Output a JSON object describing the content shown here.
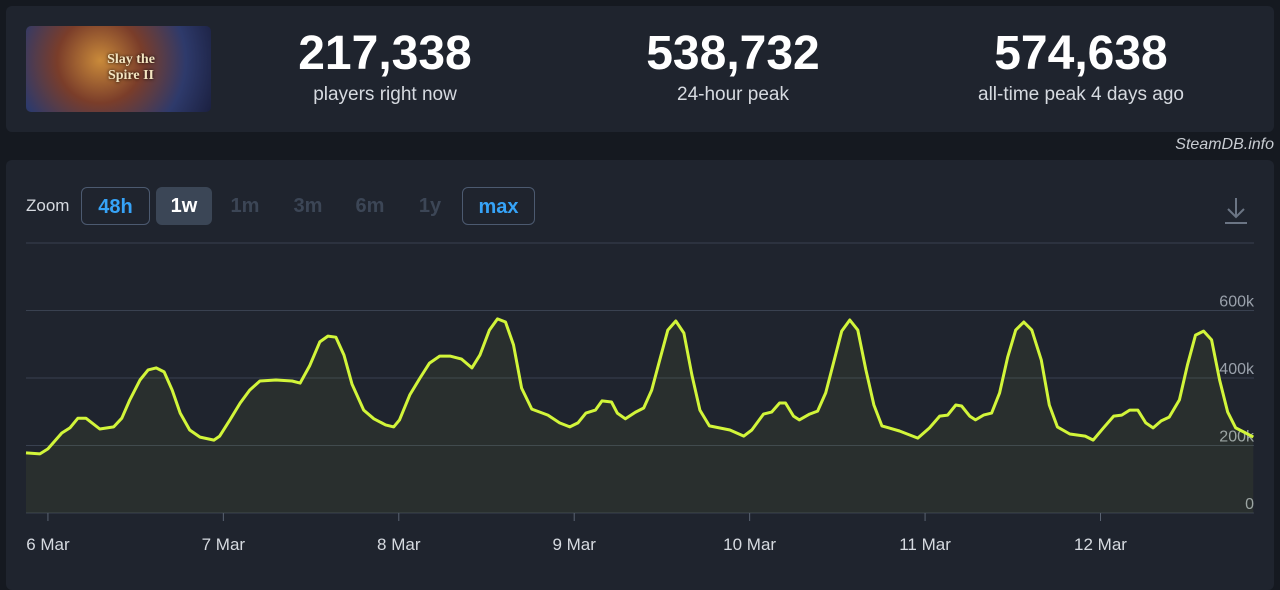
{
  "game": {
    "logo": "Slay the Spire II"
  },
  "stats": [
    {
      "value": "217,338",
      "label": "players right now"
    },
    {
      "value": "538,732",
      "label": "24-hour peak"
    },
    {
      "value": "574,638",
      "label": "all-time peak 4 days ago"
    }
  ],
  "source": "SteamDB.info",
  "zoom": {
    "label": "Zoom",
    "options": [
      "48h",
      "1w",
      "1m",
      "3m",
      "6m",
      "1y",
      "max"
    ]
  },
  "chart_data": {
    "type": "line",
    "color": "#d2f53a",
    "grid": true,
    "x": [
      -3.0,
      -1.1,
      0,
      1.9,
      3.0,
      4.1,
      5.2,
      7.1,
      9.0,
      10.1,
      11.2,
      12.6,
      13.7,
      14.8,
      15.9,
      17.0,
      18.1,
      19.4,
      20.8,
      22.7,
      23.5,
      24.9,
      26.3,
      27.6,
      29.0,
      31.2,
      33.4,
      34.5,
      35.8,
      37.2,
      38.3,
      39.4,
      40.5,
      41.6,
      43.2,
      44.6,
      46.2,
      47.3,
      48.1,
      49.5,
      50.9,
      52.2,
      53.6,
      55.0,
      56.6,
      58.0,
      59.1,
      60.4,
      61.5,
      62.6,
      63.7,
      64.8,
      66.2,
      68.4,
      70.0,
      71.4,
      72.5,
      73.6,
      74.9,
      75.8,
      77.1,
      77.9,
      79.0,
      80.4,
      81.5,
      82.6,
      83.7,
      84.8,
      85.9,
      87.0,
      88.1,
      89.2,
      90.5,
      93.3,
      95.2,
      96.3,
      97.9,
      99.0,
      100.1,
      100.9,
      102.0,
      102.8,
      104.2,
      105.3,
      106.4,
      107.5,
      108.6,
      109.7,
      110.8,
      111.9,
      113.0,
      114.1,
      116.5,
      119.0,
      120.6,
      122.0,
      123.1,
      124.2,
      125.0,
      126.1,
      126.9,
      128.0,
      129.1,
      130.2,
      131.3,
      132.4,
      133.5,
      134.6,
      135.9,
      137.0,
      138.1,
      139.8,
      141.9,
      143.0,
      144.4,
      145.8,
      146.9,
      148.0,
      149.1,
      150.2,
      151.2,
      152.3,
      153.4,
      154.8,
      155.9,
      157.0,
      158.1,
      159.2,
      160.3,
      161.4,
      162.5,
      163.6,
      164.9
    ],
    "values": [
      178000,
      175000,
      190000,
      237000,
      252000,
      281000,
      281000,
      249000,
      255000,
      281000,
      335000,
      394000,
      424000,
      430000,
      418000,
      364000,
      296000,
      246000,
      225000,
      216000,
      228000,
      276000,
      326000,
      364000,
      391000,
      394000,
      391000,
      385000,
      436000,
      507000,
      524000,
      521000,
      468000,
      382000,
      305000,
      279000,
      261000,
      255000,
      276000,
      350000,
      400000,
      444000,
      465000,
      465000,
      456000,
      430000,
      468000,
      542000,
      575000,
      566000,
      498000,
      370000,
      308000,
      290000,
      267000,
      255000,
      267000,
      296000,
      305000,
      332000,
      329000,
      296000,
      279000,
      299000,
      311000,
      364000,
      453000,
      542000,
      569000,
      533000,
      409000,
      305000,
      258000,
      246000,
      228000,
      246000,
      293000,
      299000,
      326000,
      326000,
      287000,
      276000,
      293000,
      302000,
      356000,
      447000,
      539000,
      572000,
      542000,
      424000,
      320000,
      258000,
      243000,
      222000,
      252000,
      287000,
      290000,
      320000,
      317000,
      287000,
      276000,
      290000,
      296000,
      356000,
      462000,
      542000,
      566000,
      542000,
      453000,
      320000,
      255000,
      234000,
      228000,
      216000,
      252000,
      287000,
      290000,
      305000,
      305000,
      267000,
      252000,
      273000,
      284000,
      335000,
      439000,
      527000,
      539000,
      513000,
      394000,
      299000,
      252000,
      240000,
      225000
    ],
    "xlim": [
      -3,
      165
    ],
    "xticks": [
      {
        "value": 0,
        "label": "6 Mar"
      },
      {
        "value": 24,
        "label": "7 Mar"
      },
      {
        "value": 48,
        "label": "8 Mar"
      },
      {
        "value": 72,
        "label": "9 Mar"
      },
      {
        "value": 96,
        "label": "10 Mar"
      },
      {
        "value": 120,
        "label": "11 Mar"
      },
      {
        "value": 144,
        "label": "12 Mar"
      }
    ],
    "ylim": [
      0,
      800000
    ],
    "yticks": [
      0,
      {
        "value": 200000,
        "label": "200k"
      },
      {
        "value": 400000,
        "label": "400k"
      },
      {
        "value": 600000,
        "label": "600k"
      }
    ]
  }
}
